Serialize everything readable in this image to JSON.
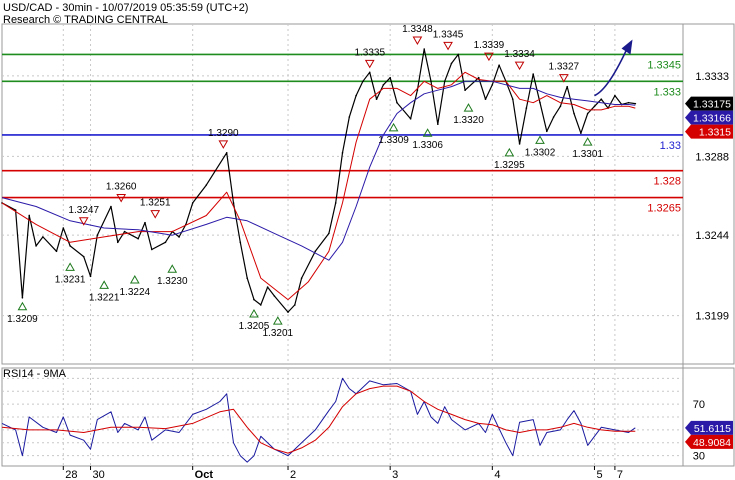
{
  "header": {
    "title": "USD/CAD - 30min - 10/07/2019 05:35:59 (UTC+2)",
    "source": "Research © TRADING CENTRAL"
  },
  "colors": {
    "price": "#000000",
    "ma_fast": "#d40000",
    "ma_slow": "#2b1aa8",
    "resistance": "#1e8c1e",
    "pivot": "#1f1fd0",
    "support": "#d40000",
    "grid": "#c8c8c8",
    "up_marker": "#1e7a1e",
    "down_marker": "#c00000",
    "arrow": "#1a1a8c",
    "rsi": "#1a1aa0",
    "rsi_ma": "#d40000"
  },
  "chart_data": [
    {
      "type": "line",
      "title": "USD/CAD - 30min",
      "ylim": [
        1.3172,
        1.3362
      ],
      "x_range": [
        0,
        100
      ],
      "y_ticks": [
        1.3333,
        1.3288,
        1.3244,
        1.3199
      ],
      "x_ticks": [
        {
          "label": "28",
          "x": 9
        },
        {
          "label": "30",
          "x": 13
        },
        {
          "label": "Oct",
          "x": 28
        },
        {
          "label": "2",
          "x": 42
        },
        {
          "label": "3",
          "x": 57
        },
        {
          "label": "4",
          "x": 72
        },
        {
          "label": "5",
          "x": 87
        },
        {
          "label": "7",
          "x": 90
        }
      ],
      "levels": [
        {
          "value": 1.3345,
          "label": "1.3345",
          "color": "#1e8c1e",
          "role": "resistance"
        },
        {
          "value": 1.333,
          "label": "1.333",
          "color": "#1e8c1e",
          "role": "resistance"
        },
        {
          "value": 1.33,
          "label": "1.33",
          "color": "#1f1fd0",
          "role": "pivot"
        },
        {
          "value": 1.328,
          "label": "1.328",
          "color": "#d40000",
          "role": "support"
        },
        {
          "value": 1.3265,
          "label": "1.3265",
          "color": "#d40000",
          "role": "support"
        }
      ],
      "price_badges": [
        {
          "value": 1.33175,
          "label": "1.33175",
          "bg": "#000000",
          "fg": "#ffffff"
        },
        {
          "value": 1.33166,
          "label": "1.33166",
          "bg": "#2b1aa8",
          "fg": "#ffffff"
        },
        {
          "value": 1.3315,
          "label": "1.3315",
          "bg": "#d40000",
          "fg": "#ffffff"
        }
      ],
      "series": [
        {
          "name": "price",
          "x": [
            0,
            2,
            3,
            4,
            5,
            6,
            8,
            9,
            10,
            12,
            13,
            14,
            16,
            17,
            18,
            20,
            21,
            22,
            24,
            25,
            26,
            27,
            28,
            30,
            33,
            34,
            35,
            36,
            37,
            38,
            39,
            40,
            42,
            43,
            44,
            46,
            48,
            49,
            50,
            51,
            52,
            53,
            54,
            55,
            56,
            57,
            58,
            60,
            61,
            62,
            63,
            64,
            65,
            66,
            67,
            68,
            70,
            71,
            72,
            73,
            74,
            75,
            76,
            77,
            78,
            79,
            80,
            81,
            82,
            83,
            84,
            85,
            86,
            87,
            88,
            89,
            90,
            91,
            92,
            93
          ],
          "values": [
            1.3262,
            1.3258,
            1.3209,
            1.3255,
            1.3238,
            1.3243,
            1.3235,
            1.3248,
            1.3238,
            1.3232,
            1.3221,
            1.3244,
            1.326,
            1.324,
            1.3246,
            1.3242,
            1.3251,
            1.3236,
            1.324,
            1.3246,
            1.3243,
            1.325,
            1.3262,
            1.3272,
            1.329,
            1.3262,
            1.324,
            1.322,
            1.3208,
            1.3205,
            1.3215,
            1.321,
            1.3201,
            1.3205,
            1.322,
            1.3235,
            1.3245,
            1.3262,
            1.329,
            1.331,
            1.3322,
            1.333,
            1.3335,
            1.332,
            1.3328,
            1.3332,
            1.3318,
            1.3309,
            1.3325,
            1.3348,
            1.333,
            1.3306,
            1.333,
            1.334,
            1.3345,
            1.3325,
            1.3332,
            1.332,
            1.3328,
            1.3339,
            1.333,
            1.332,
            1.3295,
            1.3315,
            1.3334,
            1.3318,
            1.3302,
            1.331,
            1.3316,
            1.3327,
            1.3312,
            1.3301,
            1.3312,
            1.3316,
            1.332,
            1.3315,
            1.3322,
            1.3317,
            1.3318,
            1.33175
          ]
        },
        {
          "name": "ma_fast",
          "x": [
            0,
            5,
            10,
            15,
            20,
            25,
            30,
            33,
            35,
            38,
            42,
            45,
            48,
            50,
            52,
            54,
            56,
            58,
            60,
            62,
            64,
            66,
            68,
            70,
            72,
            74,
            76,
            78,
            80,
            82,
            84,
            86,
            88,
            90,
            92,
            93
          ],
          "values": [
            1.3262,
            1.325,
            1.324,
            1.3243,
            1.3246,
            1.3246,
            1.3255,
            1.3268,
            1.3252,
            1.322,
            1.3208,
            1.3218,
            1.3235,
            1.3262,
            1.3296,
            1.332,
            1.3326,
            1.3326,
            1.3322,
            1.333,
            1.3326,
            1.3328,
            1.3335,
            1.3331,
            1.333,
            1.333,
            1.332,
            1.3318,
            1.3322,
            1.3318,
            1.3317,
            1.3314,
            1.3314,
            1.3316,
            1.3316,
            1.3315
          ]
        },
        {
          "name": "ma_slow",
          "x": [
            0,
            5,
            10,
            15,
            20,
            25,
            30,
            33,
            36,
            40,
            44,
            48,
            50,
            52,
            54,
            56,
            58,
            60,
            62,
            64,
            66,
            68,
            70,
            72,
            74,
            76,
            78,
            80,
            82,
            84,
            86,
            88,
            90,
            92,
            93
          ],
          "values": [
            1.3265,
            1.326,
            1.3252,
            1.3248,
            1.3247,
            1.3244,
            1.325,
            1.3254,
            1.3252,
            1.3245,
            1.3238,
            1.323,
            1.324,
            1.326,
            1.3282,
            1.33,
            1.3312,
            1.3318,
            1.3323,
            1.3325,
            1.3327,
            1.333,
            1.333,
            1.333,
            1.3328,
            1.3326,
            1.3326,
            1.3323,
            1.3321,
            1.332,
            1.3319,
            1.3318,
            1.3317,
            1.3317,
            1.33166
          ]
        }
      ],
      "annotations": [
        {
          "type": "low",
          "x": 3,
          "value": 1.3209,
          "label": "1.3209"
        },
        {
          "type": "low",
          "x": 10,
          "value": 1.3231,
          "label": "1.3231"
        },
        {
          "type": "high",
          "x": 12,
          "value": 1.3247,
          "label": "1.3247"
        },
        {
          "type": "low",
          "x": 15,
          "value": 1.3221,
          "label": "1.3221"
        },
        {
          "type": "high",
          "x": 17.5,
          "value": 1.326,
          "label": "1.3260"
        },
        {
          "type": "low",
          "x": 19.5,
          "value": 1.3224,
          "label": "1.3224"
        },
        {
          "type": "high",
          "x": 22.5,
          "value": 1.3251,
          "label": "1.3251"
        },
        {
          "type": "low",
          "x": 25,
          "value": 1.323,
          "label": "1.3230"
        },
        {
          "type": "high",
          "x": 32.5,
          "value": 1.329,
          "label": "1.3290"
        },
        {
          "type": "low",
          "x": 37,
          "value": 1.3205,
          "label": "1.3205"
        },
        {
          "type": "low",
          "x": 40.5,
          "value": 1.3201,
          "label": "1.3201"
        },
        {
          "type": "high",
          "x": 54,
          "value": 1.3335,
          "label": "1.3335"
        },
        {
          "type": "low",
          "x": 57.5,
          "value": 1.3309,
          "label": "1.3309"
        },
        {
          "type": "high",
          "x": 61,
          "value": 1.3348,
          "label": "1.3348"
        },
        {
          "type": "low",
          "x": 62.5,
          "value": 1.3306,
          "label": "1.3306"
        },
        {
          "type": "high",
          "x": 65.5,
          "value": 1.3345,
          "label": "1.3345"
        },
        {
          "type": "low",
          "x": 68.5,
          "value": 1.332,
          "label": "1.3320"
        },
        {
          "type": "high",
          "x": 71.5,
          "value": 1.3339,
          "label": "1.3339"
        },
        {
          "type": "high",
          "x": 76,
          "value": 1.3334,
          "label": "1.3334"
        },
        {
          "type": "low",
          "x": 74.5,
          "value": 1.3295,
          "label": "1.3295"
        },
        {
          "type": "low",
          "x": 79,
          "value": 1.3302,
          "label": "1.3302"
        },
        {
          "type": "high",
          "x": 82.5,
          "value": 1.3327,
          "label": "1.3327"
        },
        {
          "type": "low",
          "x": 86,
          "value": 1.3301,
          "label": "1.3301"
        }
      ],
      "forecast_arrow": {
        "from": {
          "x": 87,
          "value": 1.3322
        },
        "to": {
          "x": 92,
          "value": 1.335
        }
      }
    },
    {
      "type": "line",
      "title": "RSI14 - 9MA",
      "ylim": [
        22,
        98
      ],
      "x_range": [
        0,
        100
      ],
      "y_ticks": [
        70,
        30
      ],
      "grid_values": [
        90,
        80,
        70,
        60,
        50,
        40,
        30
      ],
      "badges": [
        {
          "value": 51.6115,
          "label": "51.6115",
          "bg": "#2b1aa8",
          "fg": "#ffffff"
        },
        {
          "value": 48.9084,
          "label": "48.9084",
          "bg": "#d40000",
          "fg": "#ffffff"
        }
      ],
      "series": [
        {
          "name": "RSI14",
          "x": [
            0,
            2,
            3,
            4,
            6,
            8,
            9,
            10,
            12,
            13,
            14,
            16,
            17,
            18,
            20,
            21,
            22,
            24,
            26,
            28,
            30,
            32,
            33,
            34,
            35,
            36,
            37,
            38,
            40,
            42,
            44,
            46,
            48,
            49,
            50,
            51,
            52,
            54,
            56,
            58,
            60,
            61,
            62,
            63,
            64,
            65,
            66,
            68,
            70,
            71,
            72,
            74,
            75,
            76,
            78,
            79,
            80,
            82,
            83,
            84,
            85,
            86,
            87,
            88,
            90,
            92,
            93
          ],
          "values": [
            55,
            50,
            30,
            60,
            52,
            48,
            60,
            46,
            42,
            35,
            58,
            64,
            48,
            55,
            50,
            60,
            42,
            50,
            48,
            62,
            66,
            72,
            78,
            40,
            30,
            25,
            30,
            45,
            35,
            30,
            40,
            50,
            65,
            72,
            90,
            82,
            78,
            88,
            85,
            86,
            80,
            62,
            72,
            60,
            55,
            68,
            58,
            50,
            55,
            48,
            62,
            40,
            30,
            56,
            58,
            38,
            48,
            50,
            58,
            65,
            55,
            38,
            45,
            52,
            50,
            48,
            51.6115
          ]
        },
        {
          "name": "MA9",
          "x": [
            0,
            4,
            8,
            12,
            16,
            20,
            24,
            28,
            32,
            34,
            36,
            38,
            40,
            42,
            44,
            46,
            48,
            50,
            52,
            54,
            56,
            58,
            60,
            62,
            64,
            66,
            68,
            70,
            72,
            74,
            76,
            78,
            80,
            82,
            84,
            86,
            88,
            90,
            92,
            93
          ],
          "values": [
            52,
            50,
            50,
            48,
            52,
            52,
            51,
            55,
            64,
            66,
            52,
            40,
            35,
            32,
            36,
            42,
            52,
            68,
            78,
            82,
            84,
            84,
            80,
            72,
            66,
            62,
            58,
            55,
            54,
            50,
            48,
            50,
            50,
            52,
            55,
            52,
            50,
            49,
            49,
            48.9084
          ]
        }
      ]
    }
  ]
}
